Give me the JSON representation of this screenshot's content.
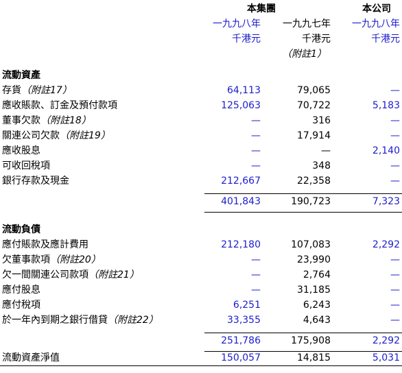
{
  "header": {
    "group": "本集團",
    "company": "本公司",
    "columns": [
      {
        "year": "一九九八年",
        "unit": "千港元"
      },
      {
        "year": "一九九七年",
        "unit": "千港元",
        "note": "（附註1）"
      },
      {
        "year": "一九九八年",
        "unit": "千港元"
      }
    ]
  },
  "sections": [
    {
      "title": "流動資產",
      "rows": [
        {
          "label": "存貨",
          "note": "（附註17）",
          "values": [
            "64,113",
            "79,065",
            "—"
          ]
        },
        {
          "label": "應收賬款、訂金及預付款項",
          "values": [
            "125,063",
            "70,722",
            "5,183"
          ]
        },
        {
          "label": "董事欠款",
          "note": "（附註18）",
          "values": [
            "—",
            "316",
            "—"
          ]
        },
        {
          "label": "關連公司欠款",
          "note": "（附註19）",
          "values": [
            "—",
            "17,914",
            "—"
          ]
        },
        {
          "label": "應收股息",
          "values": [
            "—",
            "—",
            "2,140"
          ]
        },
        {
          "label": "可收回稅項",
          "values": [
            "—",
            "348",
            "—"
          ]
        },
        {
          "label": "銀行存款及現金",
          "values": [
            "212,667",
            "22,358",
            "—"
          ]
        }
      ],
      "total": [
        "401,843",
        "190,723",
        "7,323"
      ]
    },
    {
      "title": "流動負債",
      "rows": [
        {
          "label": "應付賬款及應計費用",
          "values": [
            "212,180",
            "107,083",
            "2,292"
          ]
        },
        {
          "label": "欠董事款項",
          "note": "（附註20）",
          "values": [
            "—",
            "23,990",
            "—"
          ]
        },
        {
          "label": "欠一間關連公司款項",
          "note": "（附註21）",
          "values": [
            "—",
            "2,764",
            "—"
          ]
        },
        {
          "label": "應付股息",
          "values": [
            "—",
            "31,185",
            "—"
          ]
        },
        {
          "label": "應付稅項",
          "values": [
            "6,251",
            "6,243",
            "—"
          ]
        },
        {
          "label": "於一年內到期之銀行借貸",
          "note": "（附註22）",
          "values": [
            "33,355",
            "4,643",
            "—"
          ]
        }
      ],
      "total": [
        "251,786",
        "175,908",
        "2,292"
      ]
    }
  ],
  "net": {
    "label": "流動資產淨值",
    "values": [
      "150,057",
      "14,815",
      "5,031"
    ]
  }
}
